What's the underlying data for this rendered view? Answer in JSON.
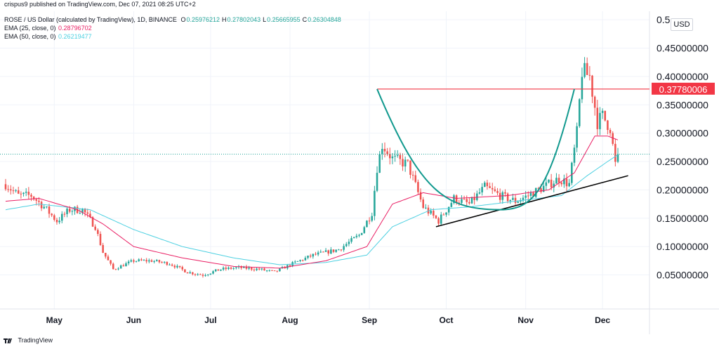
{
  "header": {
    "published_by": "crispus9 published on TradingView.com, Dec 07, 2021 08:25 UTC+2",
    "symbol_line": "ROSE / US Dollar (calculated by TradingView), 1D, BINANCE",
    "ohlc": [
      {
        "key": "O",
        "value": "0.25976212"
      },
      {
        "key": "H",
        "value": "0.27802043"
      },
      {
        "key": "L",
        "value": "0.25665955"
      },
      {
        "key": "C",
        "value": "0.26304848"
      }
    ],
    "ema25_label": "EMA (25, close, 0)",
    "ema25_value": "0.28796702",
    "ema50_label": "EMA (50, close, 0)",
    "ema50_value": "0.26219477"
  },
  "currency_button": "USD",
  "footer": {
    "brand": "TradingView"
  },
  "colors": {
    "up": "#26a69a",
    "down": "#ef5350",
    "ema25": "#e91e63",
    "ema50": "#4dd0e1",
    "resistance": "#f23645",
    "trendline": "#000000",
    "cup": "#11998e"
  },
  "chart_data": {
    "type": "candlestick",
    "title": "ROSE / US Dollar (calculated by TradingView), 1D, BINANCE",
    "x_labels": [
      "May",
      "Jun",
      "Jul",
      "Aug",
      "Sep",
      "Oct",
      "Nov",
      "Dec"
    ],
    "y_tick_labels": [
      "0.05000000",
      "0.10000000",
      "0.15000000",
      "0.20000000",
      "0.25000000",
      "0.30000000",
      "0.35000000",
      "0.40000000",
      "0.45000000",
      "0.5"
    ],
    "y_ticks": [
      0.05,
      0.1,
      0.15,
      0.2,
      0.25,
      0.3,
      0.35,
      0.4,
      0.45,
      0.5
    ],
    "ylim": [
      -0.01,
      0.515
    ],
    "start_date": "2021-04-12",
    "end_date": "2021-12-07",
    "resistance": {
      "value": 0.3778,
      "label": "0.37780006"
    },
    "last_close": 0.26304848,
    "anchors": [
      [
        "2021-04-12",
        0.21
      ],
      [
        "2021-04-17",
        0.19
      ],
      [
        "2021-04-22",
        0.19
      ],
      [
        "2021-04-27",
        0.17
      ],
      [
        "2021-05-02",
        0.145
      ],
      [
        "2021-05-07",
        0.165
      ],
      [
        "2021-05-12",
        0.165
      ],
      [
        "2021-05-17",
        0.135
      ],
      [
        "2021-05-20",
        0.09
      ],
      [
        "2021-05-24",
        0.06
      ],
      [
        "2021-06-01",
        0.075
      ],
      [
        "2021-06-08",
        0.075
      ],
      [
        "2021-06-15",
        0.07
      ],
      [
        "2021-06-22",
        0.055
      ],
      [
        "2021-06-28",
        0.05
      ],
      [
        "2021-07-05",
        0.06
      ],
      [
        "2021-07-12",
        0.063
      ],
      [
        "2021-07-20",
        0.06
      ],
      [
        "2021-07-26",
        0.055
      ],
      [
        "2021-08-02",
        0.07
      ],
      [
        "2021-08-10",
        0.085
      ],
      [
        "2021-08-20",
        0.095
      ],
      [
        "2021-08-28",
        0.12
      ],
      [
        "2021-09-02",
        0.16
      ],
      [
        "2021-09-04",
        0.24
      ],
      [
        "2021-09-06",
        0.28
      ],
      [
        "2021-09-10",
        0.255
      ],
      [
        "2021-09-16",
        0.245
      ],
      [
        "2021-09-22",
        0.17
      ],
      [
        "2021-09-28",
        0.145
      ],
      [
        "2021-10-04",
        0.185
      ],
      [
        "2021-10-10",
        0.175
      ],
      [
        "2021-10-16",
        0.205
      ],
      [
        "2021-10-22",
        0.19
      ],
      [
        "2021-10-28",
        0.18
      ],
      [
        "2021-11-02",
        0.19
      ],
      [
        "2021-11-08",
        0.205
      ],
      [
        "2021-11-14",
        0.22
      ],
      [
        "2021-11-18",
        0.21
      ],
      [
        "2021-11-21",
        0.3
      ],
      [
        "2021-11-23",
        0.41
      ],
      [
        "2021-11-26",
        0.4
      ],
      [
        "2021-11-29",
        0.32
      ],
      [
        "2021-12-01",
        0.33
      ],
      [
        "2021-12-04",
        0.31
      ],
      [
        "2021-12-06",
        0.245
      ],
      [
        "2021-12-07",
        0.263
      ]
    ],
    "ema25_anchors": [
      [
        "2021-04-12",
        0.18
      ],
      [
        "2021-04-25",
        0.185
      ],
      [
        "2021-05-10",
        0.165
      ],
      [
        "2021-05-20",
        0.14
      ],
      [
        "2021-06-01",
        0.1
      ],
      [
        "2021-06-20",
        0.08
      ],
      [
        "2021-07-10",
        0.065
      ],
      [
        "2021-07-28",
        0.062
      ],
      [
        "2021-08-15",
        0.075
      ],
      [
        "2021-08-31",
        0.1
      ],
      [
        "2021-09-10",
        0.175
      ],
      [
        "2021-09-22",
        0.195
      ],
      [
        "2021-10-05",
        0.185
      ],
      [
        "2021-10-25",
        0.19
      ],
      [
        "2021-11-10",
        0.2
      ],
      [
        "2021-11-20",
        0.23
      ],
      [
        "2021-11-28",
        0.295
      ],
      [
        "2021-12-03",
        0.295
      ],
      [
        "2021-12-07",
        0.288
      ]
    ],
    "ema50_anchors": [
      [
        "2021-04-12",
        0.165
      ],
      [
        "2021-04-25",
        0.175
      ],
      [
        "2021-05-15",
        0.165
      ],
      [
        "2021-06-01",
        0.13
      ],
      [
        "2021-06-20",
        0.1
      ],
      [
        "2021-07-10",
        0.08
      ],
      [
        "2021-07-28",
        0.068
      ],
      [
        "2021-08-15",
        0.072
      ],
      [
        "2021-08-31",
        0.085
      ],
      [
        "2021-09-10",
        0.135
      ],
      [
        "2021-09-25",
        0.165
      ],
      [
        "2021-10-10",
        0.17
      ],
      [
        "2021-10-28",
        0.18
      ],
      [
        "2021-11-15",
        0.19
      ],
      [
        "2021-11-25",
        0.225
      ],
      [
        "2021-12-03",
        0.25
      ],
      [
        "2021-12-07",
        0.262
      ]
    ],
    "trendline": {
      "from": [
        "2021-09-27",
        0.135
      ],
      "to": [
        "2021-12-11",
        0.225
      ]
    },
    "cup": {
      "left": [
        "2021-09-04",
        0.3778
      ],
      "bottom": [
        "2021-10-22",
        0.165
      ],
      "right": [
        "2021-11-20",
        0.3778
      ]
    }
  }
}
